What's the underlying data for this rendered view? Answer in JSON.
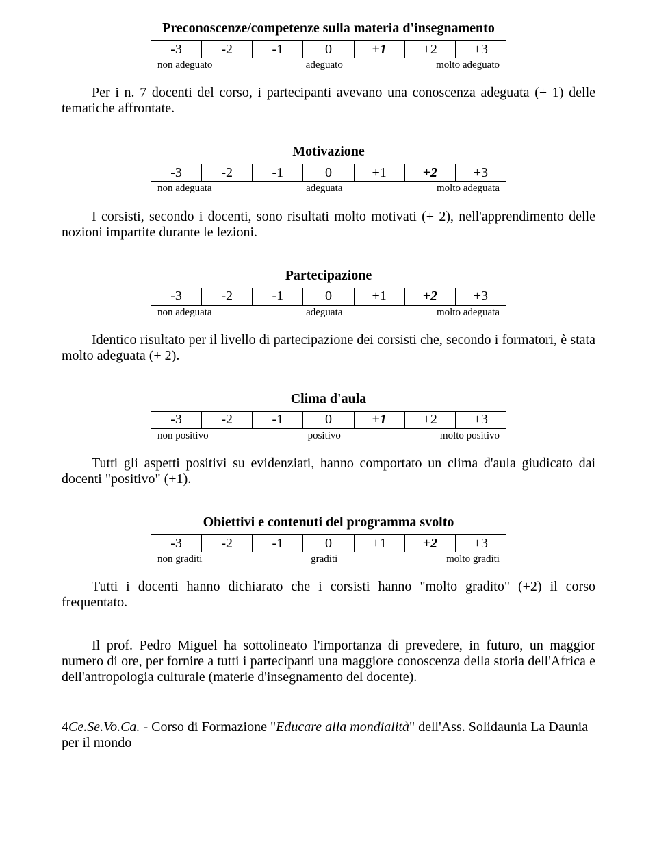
{
  "scale_values": [
    "-3",
    "-2",
    "-1",
    "0",
    "+1",
    "+2",
    "+3"
  ],
  "sections": [
    {
      "title": "Preconoscenze/competenze sulla materia d'insegnamento",
      "highlight": 4,
      "labels": [
        "non adeguato",
        "adeguato",
        "molto adeguato"
      ],
      "para_html": "Per i n. 7 docenti del corso, i partecipanti avevano una conoscenza adeguata (+ 1) delle tematiche affrontate."
    },
    {
      "title": "Motivazione",
      "highlight": 5,
      "labels": [
        "non adeguata",
        "adeguata",
        "molto adeguata"
      ],
      "para_html": "I corsisti, secondo i docenti, sono risultati molto motivati (+ 2), nell'apprendimento delle nozioni impartite durante le lezioni."
    },
    {
      "title": "Partecipazione",
      "highlight": 5,
      "labels": [
        "non adeguata",
        "adeguata",
        "molto adeguata"
      ],
      "para_html": "Identico risultato per il livello di partecipazione dei corsisti che, secondo i formatori, è stata molto adeguata (+ 2)."
    },
    {
      "title": "Clima d'aula",
      "highlight": 4,
      "labels": [
        "non positivo",
        "positivo",
        "molto positivo"
      ],
      "para_html": "Tutti gli aspetti positivi su evidenziati, hanno comportato un clima d'aula giudicato dai docenti \"positivo\" (+1)."
    },
    {
      "title": "Obiettivi e contenuti del programma svolto",
      "highlight": 5,
      "labels": [
        "non graditi",
        "graditi",
        "molto graditi"
      ],
      "para_html": "Tutti i docenti hanno dichiarato che i corsisti hanno \"molto gradito\" (+2) il corso frequentato."
    }
  ],
  "closing_para": "Il prof. Pedro Miguel ha sottolineato l'importanza di prevedere, in futuro, un maggior numero di ore, per fornire a tutti i partecipanti una maggiore conoscenza della storia dell'Africa e dell'antropologia culturale (materie d'insegnamento del docente).",
  "footer": {
    "page_num": "4",
    "org": "Ce.Se.Vo.Ca.",
    "sep": " - ",
    "text1": "Corso di Formazione ",
    "quote_open": "\"",
    "course": "Educare alla mondialità",
    "quote_close": "\"",
    "text2": " dell'Ass. Solidaunia La Daunia per il mondo"
  }
}
